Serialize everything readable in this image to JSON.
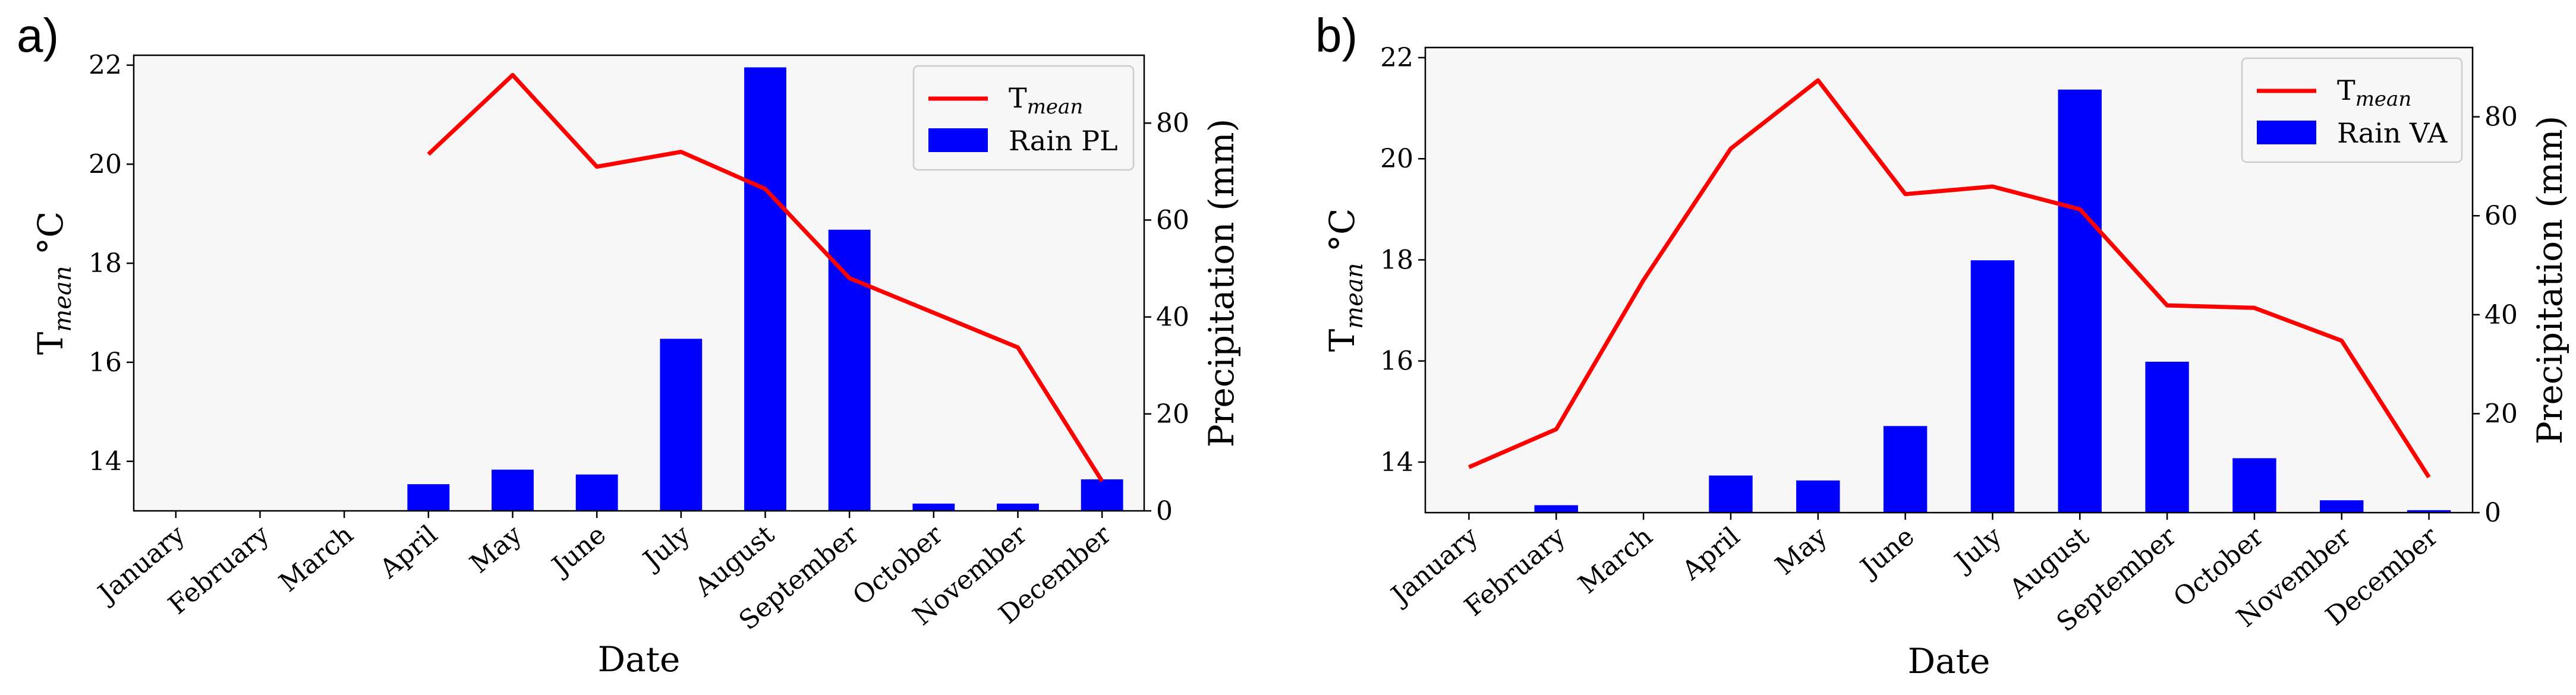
{
  "panels": [
    {
      "label": "a)",
      "legend": {
        "line_label_main": "T",
        "line_label_sub": "mean",
        "bar_label": "Rain PL"
      },
      "line_color": "#ff0000",
      "bar_color": "#0000ff"
    },
    {
      "label": "b)",
      "legend": {
        "line_label_main": "T",
        "line_label_sub": "mean",
        "bar_label": "Rain VA"
      },
      "line_color": "#ff0000",
      "bar_color": "#0000ff"
    }
  ],
  "chart_data": [
    {
      "type": "bar+line",
      "title": "",
      "xlabel": "Date",
      "ylabel_left": "T mean °C",
      "ylabel_left_main": "T",
      "ylabel_left_sub": "mean",
      "ylabel_left_unit": "°C",
      "ylabel_right": "Precipitation (mm)",
      "categories": [
        "January",
        "February",
        "March",
        "April",
        "May",
        "June",
        "July",
        "August",
        "September",
        "October",
        "November",
        "December"
      ],
      "ylim_left": [
        13,
        22.2
      ],
      "yticks_left": [
        14,
        16,
        18,
        20,
        22
      ],
      "ylim_right": [
        0,
        94
      ],
      "yticks_right": [
        0,
        20,
        40,
        60,
        80
      ],
      "series": [
        {
          "name": "T mean",
          "kind": "line",
          "axis": "left",
          "values": [
            null,
            null,
            null,
            20.2,
            21.8,
            19.95,
            20.25,
            19.5,
            17.7,
            17.0,
            16.3,
            13.6
          ]
        },
        {
          "name": "Rain PL",
          "kind": "bar",
          "axis": "right",
          "values": [
            0,
            0,
            0,
            5.5,
            8.5,
            7.5,
            35.5,
            91.5,
            58,
            1.5,
            1.5,
            6.5
          ]
        }
      ]
    },
    {
      "type": "bar+line",
      "title": "",
      "xlabel": "Date",
      "ylabel_left": "T mean °C",
      "ylabel_left_main": "T",
      "ylabel_left_sub": "mean",
      "ylabel_left_unit": "°C",
      "ylabel_right": "Precipitation (mm)",
      "categories": [
        "January",
        "February",
        "March",
        "April",
        "May",
        "June",
        "July",
        "August",
        "September",
        "October",
        "November",
        "December"
      ],
      "ylim_left": [
        13,
        22.2
      ],
      "yticks_left": [
        14,
        16,
        18,
        20,
        22
      ],
      "ylim_right": [
        0,
        94
      ],
      "yticks_right": [
        0,
        20,
        40,
        60,
        80
      ],
      "series": [
        {
          "name": "T mean",
          "kind": "line",
          "axis": "left",
          "values": [
            13.9,
            14.65,
            17.6,
            20.2,
            21.55,
            19.3,
            19.45,
            19.0,
            17.1,
            17.05,
            16.4,
            13.7
          ]
        },
        {
          "name": "Rain VA",
          "kind": "bar",
          "axis": "right",
          "values": [
            0,
            1.5,
            0,
            7.5,
            6.5,
            17.5,
            51,
            85.5,
            30.5,
            11,
            2.5,
            0.5
          ]
        }
      ]
    }
  ]
}
